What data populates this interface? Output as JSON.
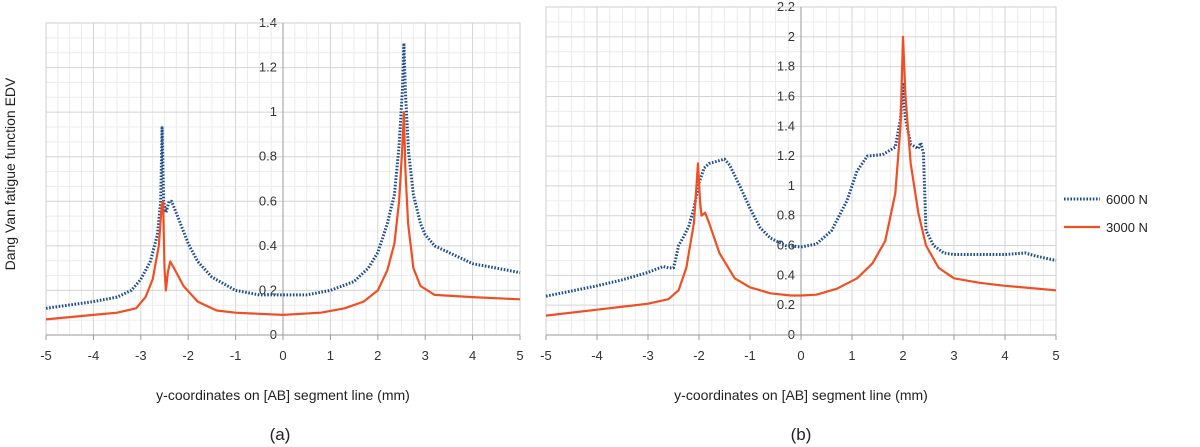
{
  "chart_data": [
    {
      "type": "line",
      "caption": "(a)",
      "xlabel": "y-coordinates on [AB] segment line (mm)",
      "ylabel": "Dang Van fatigue function EDV",
      "xlim": [
        -5,
        5
      ],
      "ylim": [
        0,
        1.4
      ],
      "xticks": [
        "-5",
        "-4",
        "-3",
        "-2",
        "-1",
        "0",
        "1",
        "2",
        "3",
        "4",
        "5"
      ],
      "yticks": [
        "0",
        "0.2",
        "0.4",
        "0.6",
        "0.8",
        "1",
        "1.2",
        "1.4"
      ],
      "grid": true,
      "series": [
        {
          "name": "6000 N",
          "color": "#1f4e8c",
          "style": "dotted",
          "points": [
            [
              -5,
              0.12
            ],
            [
              -4,
              0.15
            ],
            [
              -3.5,
              0.17
            ],
            [
              -3.2,
              0.2
            ],
            [
              -3.0,
              0.25
            ],
            [
              -2.8,
              0.33
            ],
            [
              -2.65,
              0.45
            ],
            [
              -2.58,
              0.6
            ],
            [
              -2.55,
              0.93
            ],
            [
              -2.52,
              0.6
            ],
            [
              -2.47,
              0.55
            ],
            [
              -2.4,
              0.6
            ],
            [
              -2.35,
              0.6
            ],
            [
              -2.2,
              0.52
            ],
            [
              -2.0,
              0.41
            ],
            [
              -1.8,
              0.33
            ],
            [
              -1.5,
              0.26
            ],
            [
              -1.0,
              0.2
            ],
            [
              -0.5,
              0.18
            ],
            [
              0,
              0.18
            ],
            [
              0.5,
              0.18
            ],
            [
              1.0,
              0.2
            ],
            [
              1.5,
              0.24
            ],
            [
              1.8,
              0.3
            ],
            [
              2.0,
              0.37
            ],
            [
              2.2,
              0.5
            ],
            [
              2.35,
              0.63
            ],
            [
              2.45,
              0.85
            ],
            [
              2.52,
              1.1
            ],
            [
              2.55,
              1.31
            ],
            [
              2.58,
              1.1
            ],
            [
              2.65,
              0.82
            ],
            [
              2.75,
              0.63
            ],
            [
              2.9,
              0.5
            ],
            [
              3.0,
              0.45
            ],
            [
              3.2,
              0.4
            ],
            [
              3.5,
              0.37
            ],
            [
              4.0,
              0.32
            ],
            [
              4.5,
              0.3
            ],
            [
              5,
              0.28
            ]
          ]
        },
        {
          "name": "3000 N",
          "color": "#f04e23",
          "style": "solid",
          "points": [
            [
              -5,
              0.07
            ],
            [
              -4,
              0.09
            ],
            [
              -3.5,
              0.1
            ],
            [
              -3.1,
              0.12
            ],
            [
              -2.9,
              0.17
            ],
            [
              -2.75,
              0.25
            ],
            [
              -2.62,
              0.4
            ],
            [
              -2.56,
              0.58
            ],
            [
              -2.53,
              0.6
            ],
            [
              -2.5,
              0.3
            ],
            [
              -2.47,
              0.2
            ],
            [
              -2.43,
              0.28
            ],
            [
              -2.38,
              0.33
            ],
            [
              -2.3,
              0.3
            ],
            [
              -2.1,
              0.22
            ],
            [
              -1.8,
              0.15
            ],
            [
              -1.4,
              0.11
            ],
            [
              -1.0,
              0.1
            ],
            [
              0,
              0.09
            ],
            [
              0.8,
              0.1
            ],
            [
              1.3,
              0.12
            ],
            [
              1.7,
              0.15
            ],
            [
              2.0,
              0.2
            ],
            [
              2.2,
              0.29
            ],
            [
              2.35,
              0.41
            ],
            [
              2.45,
              0.6
            ],
            [
              2.52,
              0.85
            ],
            [
              2.55,
              1.0
            ],
            [
              2.58,
              0.75
            ],
            [
              2.64,
              0.5
            ],
            [
              2.75,
              0.3
            ],
            [
              2.9,
              0.22
            ],
            [
              3.2,
              0.18
            ],
            [
              4,
              0.17
            ],
            [
              5,
              0.16
            ]
          ]
        }
      ]
    },
    {
      "type": "line",
      "caption": "(b)",
      "xlabel": "y-coordinates on [AB] segment line (mm)",
      "ylabel": "",
      "xlim": [
        -5,
        5
      ],
      "ylim": [
        0,
        2.2
      ],
      "xticks": [
        "-5",
        "-4",
        "-3",
        "-2",
        "-1",
        "0",
        "1",
        "2",
        "3",
        "4",
        "5"
      ],
      "yticks": [
        "0",
        "0.2",
        "0.4",
        "0.6",
        "0.8",
        "1",
        "1.2",
        "1.4",
        "1.6",
        "1.8",
        "2",
        "2.2"
      ],
      "grid": true,
      "legend_position": "right",
      "series": [
        {
          "name": "6000 N",
          "color": "#1f4e8c",
          "style": "dotted",
          "points": [
            [
              -5,
              0.26
            ],
            [
              -4,
              0.33
            ],
            [
              -3.5,
              0.37
            ],
            [
              -3.0,
              0.42
            ],
            [
              -2.7,
              0.46
            ],
            [
              -2.6,
              0.45
            ],
            [
              -2.5,
              0.45
            ],
            [
              -2.45,
              0.52
            ],
            [
              -2.4,
              0.6
            ],
            [
              -2.3,
              0.66
            ],
            [
              -2.2,
              0.73
            ],
            [
              -2.1,
              0.85
            ],
            [
              -2.0,
              1.02
            ],
            [
              -1.9,
              1.12
            ],
            [
              -1.8,
              1.15
            ],
            [
              -1.6,
              1.17
            ],
            [
              -1.5,
              1.18
            ],
            [
              -1.4,
              1.14
            ],
            [
              -1.2,
              1.0
            ],
            [
              -1.0,
              0.85
            ],
            [
              -0.8,
              0.72
            ],
            [
              -0.6,
              0.65
            ],
            [
              -0.3,
              0.6
            ],
            [
              0,
              0.59
            ],
            [
              0.3,
              0.61
            ],
            [
              0.6,
              0.7
            ],
            [
              0.9,
              0.9
            ],
            [
              1.1,
              1.1
            ],
            [
              1.3,
              1.2
            ],
            [
              1.6,
              1.21
            ],
            [
              1.85,
              1.26
            ],
            [
              1.95,
              1.45
            ],
            [
              2.0,
              1.68
            ],
            [
              2.05,
              1.45
            ],
            [
              2.15,
              1.28
            ],
            [
              2.3,
              1.25
            ],
            [
              2.35,
              1.29
            ],
            [
              2.4,
              1.22
            ],
            [
              2.45,
              0.7
            ],
            [
              2.6,
              0.6
            ],
            [
              2.8,
              0.55
            ],
            [
              3.0,
              0.54
            ],
            [
              3.5,
              0.54
            ],
            [
              4,
              0.54
            ],
            [
              4.4,
              0.55
            ],
            [
              4.6,
              0.53
            ],
            [
              5,
              0.5
            ]
          ]
        },
        {
          "name": "3000 N",
          "color": "#f04e23",
          "style": "solid",
          "points": [
            [
              -5,
              0.13
            ],
            [
              -4,
              0.17
            ],
            [
              -3.0,
              0.21
            ],
            [
              -2.6,
              0.24
            ],
            [
              -2.4,
              0.3
            ],
            [
              -2.25,
              0.45
            ],
            [
              -2.1,
              0.75
            ],
            [
              -2.02,
              1.15
            ],
            [
              -1.98,
              0.9
            ],
            [
              -1.95,
              0.8
            ],
            [
              -1.88,
              0.82
            ],
            [
              -1.8,
              0.75
            ],
            [
              -1.6,
              0.55
            ],
            [
              -1.3,
              0.38
            ],
            [
              -1.0,
              0.32
            ],
            [
              -0.6,
              0.28
            ],
            [
              -0.2,
              0.265
            ],
            [
              0,
              0.265
            ],
            [
              0.3,
              0.27
            ],
            [
              0.7,
              0.31
            ],
            [
              1.1,
              0.38
            ],
            [
              1.4,
              0.48
            ],
            [
              1.65,
              0.63
            ],
            [
              1.85,
              0.95
            ],
            [
              1.95,
              1.4
            ],
            [
              2.0,
              2.0
            ],
            [
              2.05,
              1.6
            ],
            [
              2.15,
              1.15
            ],
            [
              2.3,
              0.82
            ],
            [
              2.45,
              0.6
            ],
            [
              2.7,
              0.45
            ],
            [
              3.0,
              0.38
            ],
            [
              3.5,
              0.35
            ],
            [
              4,
              0.33
            ],
            [
              5,
              0.3
            ]
          ]
        }
      ]
    }
  ]
}
